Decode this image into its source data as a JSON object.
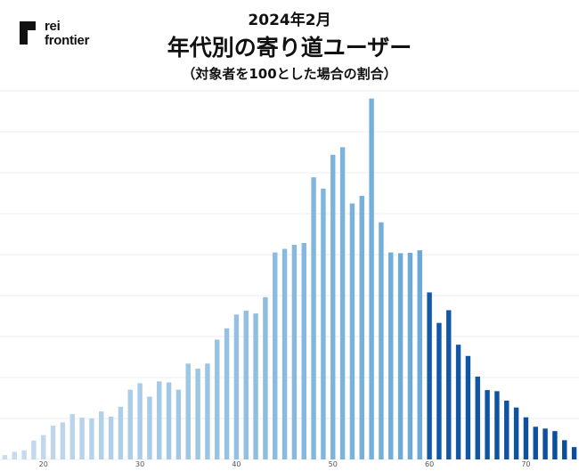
{
  "brand": {
    "line1": "rei",
    "line2": "frontier",
    "color": "#111111"
  },
  "header": {
    "date": "2024年2月",
    "title": "年代別の寄り道ユーザー",
    "subtitle": "（対象者を100とした場合の割合）"
  },
  "chart_data": {
    "type": "bar",
    "xlabel": "",
    "ylabel": "",
    "ylim": [
      0,
      100
    ],
    "xlim": [
      15.5,
      75.5
    ],
    "grid": true,
    "legend": "none",
    "x_ticks": [
      "20",
      "30",
      "40",
      "50",
      "60",
      "70"
    ],
    "x": [
      16,
      17,
      18,
      19,
      20,
      21,
      22,
      23,
      24,
      25,
      26,
      27,
      28,
      29,
      30,
      31,
      32,
      33,
      34,
      35,
      36,
      37,
      38,
      39,
      40,
      41,
      42,
      43,
      44,
      45,
      46,
      47,
      48,
      49,
      50,
      51,
      52,
      53,
      54,
      55,
      56,
      57,
      58,
      59,
      60,
      61,
      62,
      63,
      64,
      65,
      66,
      67,
      68,
      69,
      70,
      71,
      72,
      73,
      74,
      75
    ],
    "values": [
      1.2,
      2.1,
      2.5,
      5.2,
      6.7,
      9.3,
      10.2,
      12.5,
      11.5,
      11.3,
      13.2,
      11.8,
      14.5,
      19.2,
      21.0,
      17.3,
      21.5,
      21.2,
      19.2,
      26.4,
      25.0,
      26.4,
      33.0,
      36.1,
      39.9,
      41.0,
      40.2,
      44.7,
      57.0,
      58.0,
      59.1,
      59.6,
      77.7,
      74.6,
      83.9,
      86.0,
      70.5,
      72.6,
      99.4,
      65.3,
      57.0,
      56.8,
      56.9,
      57.6,
      46.0,
      37.6,
      41.1,
      31.6,
      28.5,
      22.8,
      19.1,
      18.8,
      16.2,
      14.3,
      11.6,
      9.0,
      8.5,
      7.8,
      5.3,
      3.4
    ],
    "colors": {
      "light": "#c9dcef",
      "mid": "#6aaad7",
      "dark": "#0a4e9b",
      "grid": "#ececec"
    }
  }
}
